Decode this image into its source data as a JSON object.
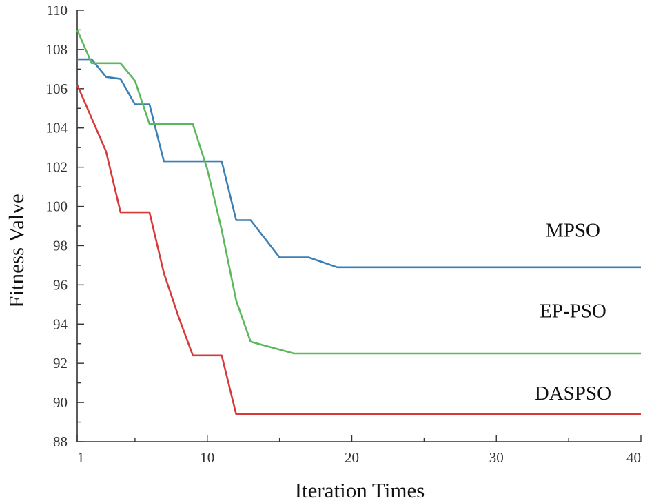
{
  "chart_data": {
    "type": "line",
    "title": "",
    "xlabel": "Iteration Times",
    "ylabel": "Fitness Valve",
    "xlim": [
      1,
      40
    ],
    "ylim": [
      88,
      110
    ],
    "xticks": [
      1,
      10,
      20,
      30,
      40
    ],
    "yticks": [
      88,
      90,
      92,
      94,
      96,
      98,
      100,
      102,
      104,
      106,
      108,
      110
    ],
    "grid": false,
    "legend": "inline-labels-right",
    "series": [
      {
        "name": "MPSO",
        "color": "#3a7fb5",
        "points": [
          [
            1,
            107.5
          ],
          [
            2,
            107.5
          ],
          [
            3,
            106.6
          ],
          [
            4,
            106.5
          ],
          [
            5,
            105.2
          ],
          [
            6,
            105.2
          ],
          [
            7,
            102.3
          ],
          [
            11,
            102.3
          ],
          [
            12,
            99.3
          ],
          [
            13,
            99.3
          ],
          [
            15,
            97.4
          ],
          [
            17,
            97.4
          ],
          [
            19,
            96.9
          ],
          [
            40,
            96.9
          ]
        ]
      },
      {
        "name": "EP-PSO",
        "color": "#5cb85c",
        "points": [
          [
            1,
            109
          ],
          [
            2,
            107.3
          ],
          [
            4,
            107.3
          ],
          [
            5,
            106.4
          ],
          [
            6,
            104.2
          ],
          [
            9,
            104.2
          ],
          [
            10,
            101.9
          ],
          [
            11,
            98.8
          ],
          [
            12,
            95.2
          ],
          [
            13,
            93.1
          ],
          [
            16,
            92.5
          ],
          [
            40,
            92.5
          ]
        ]
      },
      {
        "name": "DASPSO",
        "color": "#d63a3a",
        "points": [
          [
            1,
            106.2
          ],
          [
            2,
            104.5
          ],
          [
            3,
            102.8
          ],
          [
            4,
            99.7
          ],
          [
            6,
            99.7
          ],
          [
            7,
            96.6
          ],
          [
            8,
            94.4
          ],
          [
            9,
            92.4
          ],
          [
            11,
            92.4
          ],
          [
            12,
            89.4
          ],
          [
            40,
            89.4
          ]
        ]
      }
    ]
  }
}
